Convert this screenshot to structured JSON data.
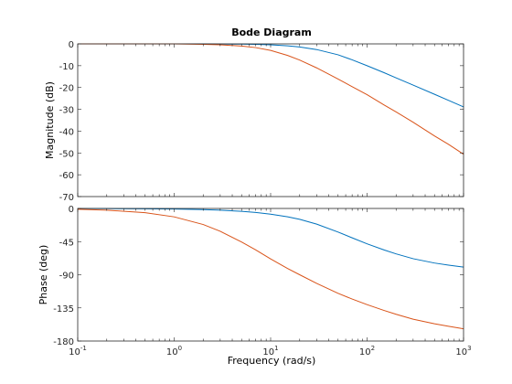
{
  "chart_data": {
    "type": "line",
    "title": "Bode Diagram",
    "xlabel": "Frequency  (rad/s)",
    "x_scale": "log",
    "xlim": [
      0.1,
      1000
    ],
    "x_ticks": [
      {
        "value": 0.1,
        "base": "10",
        "exp": "-1"
      },
      {
        "value": 1,
        "base": "10",
        "exp": "0"
      },
      {
        "value": 10,
        "base": "10",
        "exp": "1"
      },
      {
        "value": 100,
        "base": "10",
        "exp": "2"
      },
      {
        "value": 1000,
        "base": "10",
        "exp": "3"
      }
    ],
    "x": [
      0.1,
      0.2,
      0.5,
      1,
      2,
      3,
      5,
      7,
      10,
      15,
      20,
      30,
      50,
      70,
      100,
      150,
      200,
      300,
      500,
      700,
      1000
    ],
    "grid": false,
    "panels": [
      {
        "ylabel": "Magnitude (dB)",
        "ylim": [
          -70,
          0
        ],
        "y_ticks": [
          "0",
          "-10",
          "-20",
          "-30",
          "-40",
          "-50",
          "-60",
          "-70"
        ],
        "y_tick_values": [
          0,
          -10,
          -20,
          -30,
          -40,
          -50,
          -60,
          -70
        ],
        "series": [
          {
            "color": "#0072bd",
            "values": [
              0,
              0,
              0,
              0,
              0,
              -0.1,
              -0.1,
              -0.2,
              -0.4,
              -0.9,
              -1.4,
              -2.6,
              -5.0,
              -7.3,
              -10.0,
              -13.2,
              -15.6,
              -18.9,
              -23.1,
              -25.9,
              -28.9
            ]
          },
          {
            "color": "#d95319",
            "values": [
              0,
              0,
              0,
              0,
              -0.2,
              -0.4,
              -1.0,
              -1.7,
              -3.0,
              -5.3,
              -7.4,
              -11.0,
              -16.1,
              -19.6,
              -23.3,
              -28.0,
              -31.2,
              -35.9,
              -42.2,
              -46.1,
              -50.6
            ]
          }
        ]
      },
      {
        "ylabel": "Phase (deg)",
        "ylim": [
          -180,
          0
        ],
        "y_ticks": [
          "0",
          "-45",
          "-90",
          "-135",
          "-180"
        ],
        "y_tick_values": [
          0,
          -45,
          -90,
          -135,
          -180
        ],
        "series": [
          {
            "color": "#0072bd",
            "values": [
              -0.1,
              -0.2,
              -0.4,
              -0.8,
              -1.6,
              -2.3,
              -3.9,
              -5.4,
              -7.7,
              -11.3,
              -14.8,
              -21.3,
              -32.0,
              -39.9,
              -48.0,
              -56.3,
              -61.7,
              -68.2,
              -74.1,
              -76.9,
              -79.6
            ]
          },
          {
            "color": "#d95319",
            "values": [
              -1.1,
              -2.3,
              -5.7,
              -11.4,
              -21.8,
              -31.0,
              -45.6,
              -56.3,
              -68.5,
              -81.5,
              -90.0,
              -101.7,
              -115.2,
              -123.0,
              -130.6,
              -138.5,
              -143.7,
              -150.3,
              -156.6,
              -160.0,
              -163.4
            ]
          }
        ]
      }
    ]
  }
}
